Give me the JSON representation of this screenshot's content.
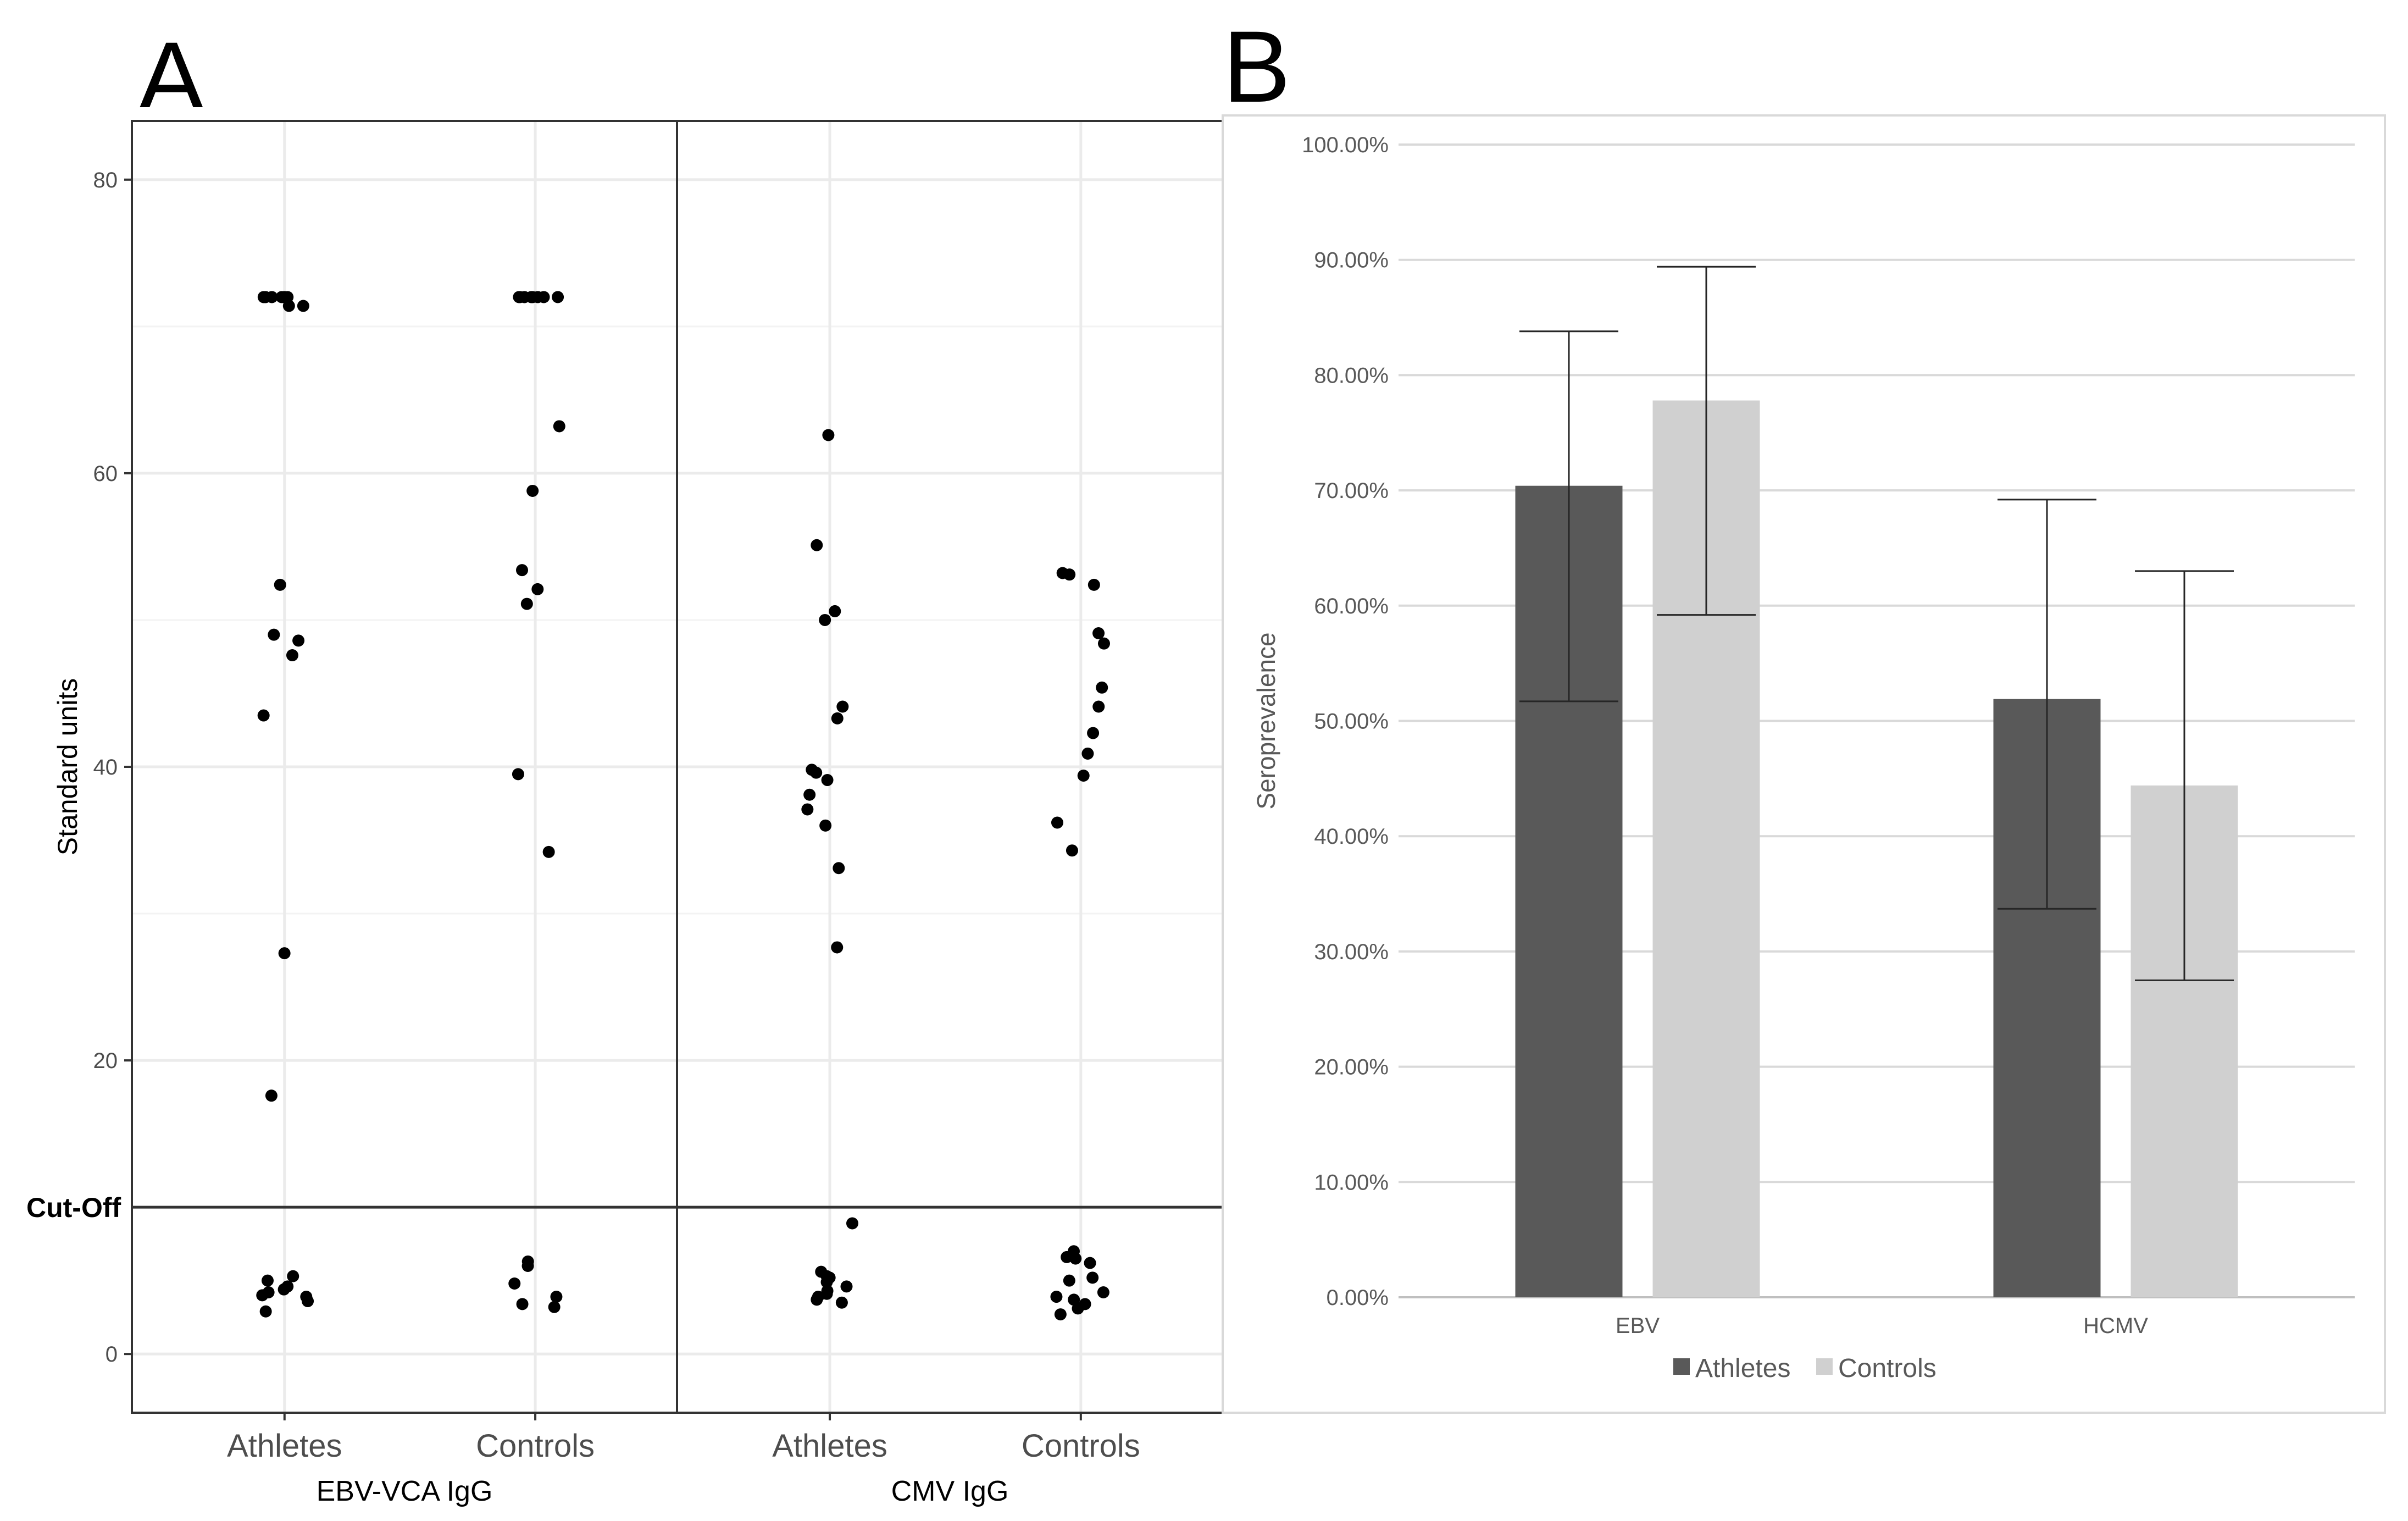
{
  "panel_labels": {
    "a": "A",
    "b": "B"
  },
  "colors": {
    "athletes": "#595959",
    "controls": "#d0d0d0",
    "dot": "#000000",
    "grid": "#ebebeb",
    "frame": "#333333"
  },
  "chart_data": [
    {
      "type": "scatter",
      "panel": "A",
      "ylabel": "Standard units",
      "ylim": [
        -4,
        84
      ],
      "y_ticks": [
        0,
        20,
        40,
        60,
        80
      ],
      "cutoff": {
        "label": "Cut-Off",
        "value": 10
      },
      "groups": [
        "EBV-VCA IgG",
        "CMV IgG"
      ],
      "categories": [
        "Athletes",
        "Controls"
      ],
      "series": [
        {
          "group": "EBV-VCA IgG",
          "category": "Athletes",
          "values": [
            72,
            72,
            72,
            72,
            72,
            72,
            72,
            71.4,
            71.4,
            52.4,
            49,
            48.6,
            47.6,
            43.5,
            27.3,
            17.6,
            5.3,
            5,
            4.6,
            4.4,
            4.2,
            4,
            3.9,
            3.6,
            2.9
          ]
        },
        {
          "group": "EBV-VCA IgG",
          "category": "Controls",
          "values": [
            72,
            72,
            72,
            72,
            72,
            72,
            72,
            72,
            63.2,
            58.8,
            53.4,
            52.1,
            51.1,
            39.5,
            34.2,
            6.3,
            6,
            4.8,
            3.9,
            3.4,
            3.2
          ]
        },
        {
          "group": "CMV IgG",
          "category": "Athletes",
          "values": [
            62.6,
            55.1,
            50.6,
            50,
            44.1,
            43.3,
            39.8,
            39.6,
            39.1,
            38.1,
            37.1,
            36,
            33.1,
            27.7,
            8.9,
            5.6,
            5.3,
            5.2,
            4.9,
            4.6,
            4.3,
            4.1,
            3.9,
            3.7,
            3.5
          ]
        },
        {
          "group": "CMV IgG",
          "category": "Controls",
          "values": [
            53.2,
            53.1,
            52.4,
            49.1,
            48.4,
            45.4,
            44.1,
            42.3,
            40.9,
            39.4,
            36.2,
            34.3,
            7,
            6.6,
            6.5,
            6.2,
            5.2,
            5,
            4.2,
            3.9,
            3.7,
            3.4,
            3.1,
            2.7
          ]
        }
      ]
    },
    {
      "type": "bar",
      "panel": "B",
      "title": "",
      "ylabel": "Seroprevalence",
      "xlabel": "",
      "ylim": [
        0,
        100
      ],
      "y_ticks": [
        "0.00%",
        "10.00%",
        "20.00%",
        "30.00%",
        "40.00%",
        "50.00%",
        "60.00%",
        "70.00%",
        "80.00%",
        "90.00%",
        "100.00%"
      ],
      "categories": [
        "EBV",
        "HCMV"
      ],
      "series": [
        {
          "name": "Athletes",
          "values": [
            70.4,
            51.9
          ],
          "err_low": [
            51.7,
            33.7
          ],
          "err_high": [
            83.8,
            69.2
          ]
        },
        {
          "name": "Controls",
          "values": [
            77.8,
            44.4
          ],
          "err_low": [
            59.2,
            27.5
          ],
          "err_high": [
            89.4,
            63.0
          ]
        }
      ],
      "legend": [
        "Athletes",
        "Controls"
      ],
      "legend_position": "bottom"
    }
  ]
}
